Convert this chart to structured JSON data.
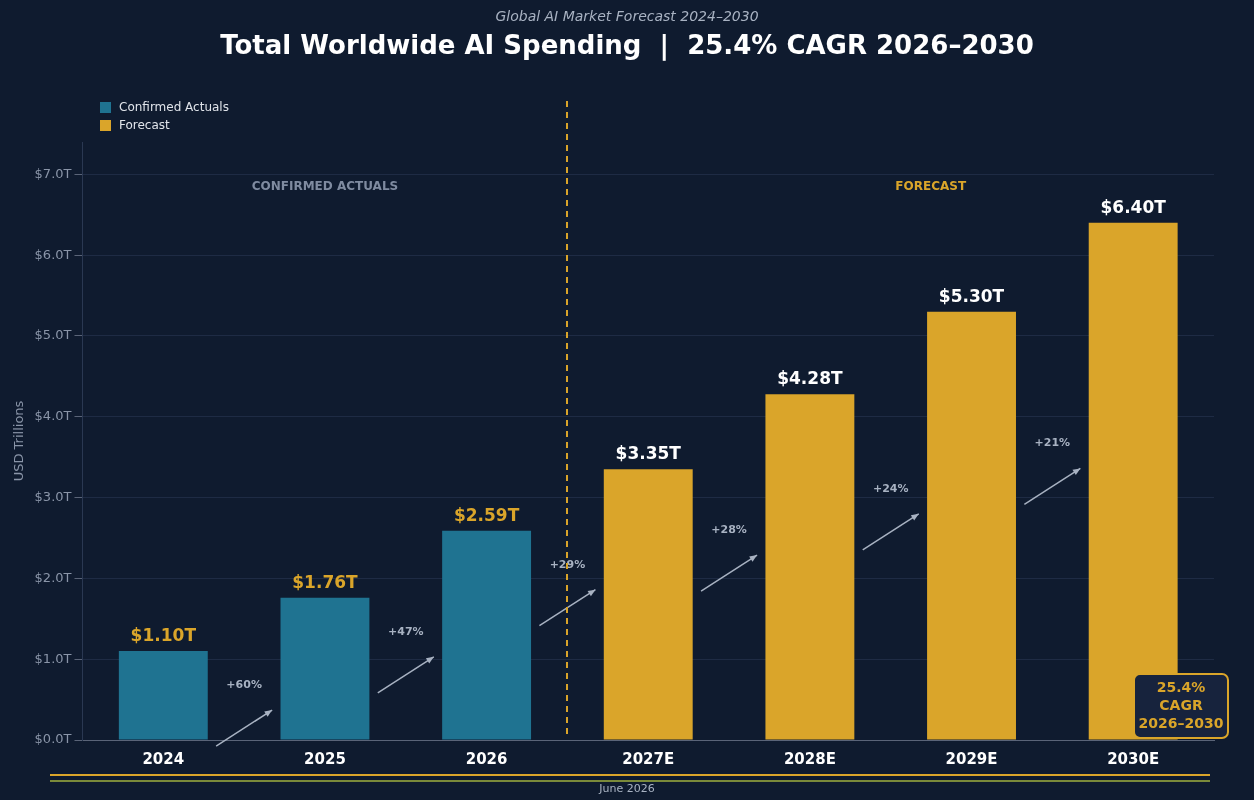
{
  "chart_data": {
    "type": "bar",
    "title": "Total Worldwide AI Spending  |  25.4% CAGR 2026–2030",
    "subtitle": "Global AI Market Forecast 2024–2030",
    "ylabel": "USD Trillions",
    "categories": [
      "2024",
      "2025",
      "2026",
      "2027E",
      "2028E",
      "2029E",
      "2030E"
    ],
    "series": [
      {
        "name": "Confirmed Actuals",
        "color": "#1f7391",
        "values": [
          1.1,
          1.76,
          2.59,
          null,
          null,
          null,
          null
        ],
        "value_labels": [
          "$1.10T",
          "$1.76T",
          "$2.59T",
          null,
          null,
          null,
          null
        ]
      },
      {
        "name": "Forecast",
        "color": "#daa52a",
        "values": [
          null,
          null,
          null,
          3.35,
          4.28,
          5.3,
          6.4
        ],
        "value_labels": [
          null,
          null,
          null,
          "$3.35T",
          "$4.28T",
          "$5.30T",
          "$6.40T"
        ]
      }
    ],
    "ylim": [
      0,
      7.4
    ],
    "yticks": [
      {
        "value": 0,
        "label": "$0.0T"
      },
      {
        "value": 1,
        "label": "$1.0T"
      },
      {
        "value": 2,
        "label": "$2.0T"
      },
      {
        "value": 3,
        "label": "$3.0T"
      },
      {
        "value": 4,
        "label": "$4.0T"
      },
      {
        "value": 5,
        "label": "$5.0T"
      },
      {
        "value": 6,
        "label": "$6.0T"
      },
      {
        "value": 7,
        "label": "$7.0T"
      }
    ],
    "grid": "y",
    "legend": "top left",
    "annotations": [
      "CONFIRMED ACTUALS",
      "FORECAST",
      "+60%",
      "+47%",
      "+29%",
      "+28%",
      "+24%",
      "+21%",
      "25.4%\nCAGR\n2026–2030",
      "June 2026"
    ]
  }
}
